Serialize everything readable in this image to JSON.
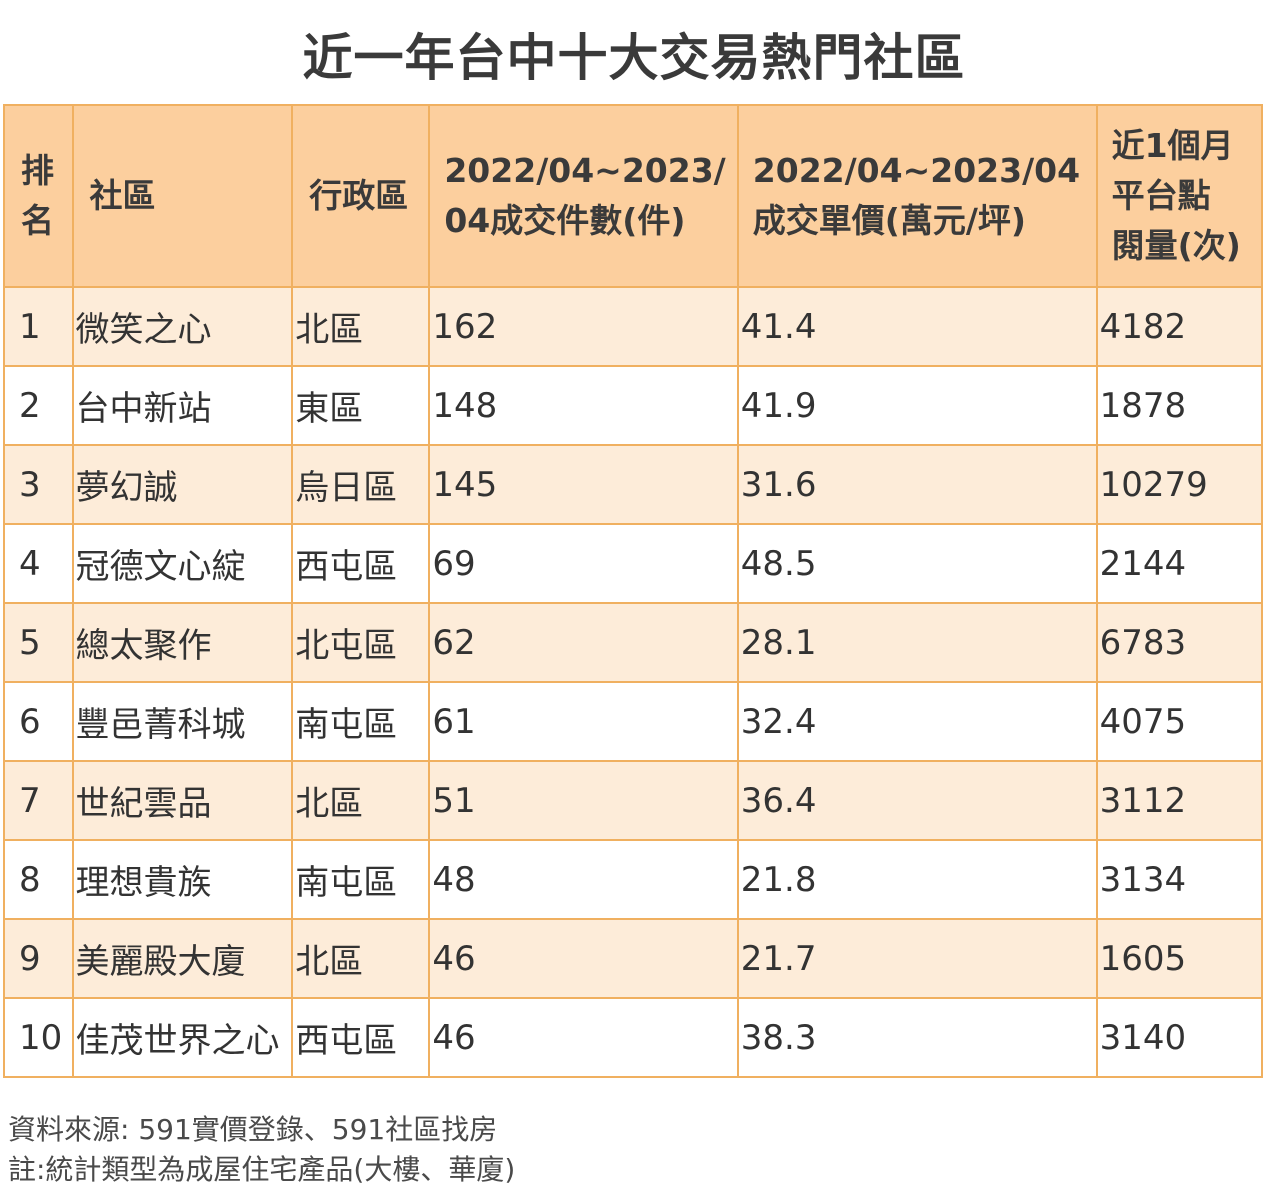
{
  "title": "近一年台中十大交易熱門社區",
  "table": {
    "headers": {
      "rank": [
        "排",
        "名"
      ],
      "community": "社區",
      "district": "行政區",
      "count": [
        "2022/04~2023/",
        "04成交件數(件)"
      ],
      "price": [
        "2022/04~2023/04",
        "成交單價(萬元/坪)"
      ],
      "views": [
        "近1個月",
        "平台點",
        "閱量(次)"
      ]
    },
    "rows": [
      {
        "rank": "1",
        "community": "微笑之心",
        "district": "北區",
        "count": "162",
        "price": "41.4",
        "views": "4182"
      },
      {
        "rank": "2",
        "community": "台中新站",
        "district": "東區",
        "count": "148",
        "price": "41.9",
        "views": "1878"
      },
      {
        "rank": "3",
        "community": "夢幻誠",
        "district": "烏日區",
        "count": "145",
        "price": "31.6",
        "views": "10279"
      },
      {
        "rank": "4",
        "community": "冠德文心綻",
        "district": "西屯區",
        "count": "69",
        "price": "48.5",
        "views": "2144"
      },
      {
        "rank": "5",
        "community": "總太聚作",
        "district": "北屯區",
        "count": "62",
        "price": "28.1",
        "views": "6783"
      },
      {
        "rank": "6",
        "community": "豐邑菁科城",
        "district": "南屯區",
        "count": "61",
        "price": "32.4",
        "views": "4075"
      },
      {
        "rank": "7",
        "community": "世紀雲品",
        "district": "北區",
        "count": "51",
        "price": "36.4",
        "views": "3112"
      },
      {
        "rank": "8",
        "community": "理想貴族",
        "district": "南屯區",
        "count": "48",
        "price": "21.8",
        "views": "3134"
      },
      {
        "rank": "9",
        "community": "美麗殿大廈",
        "district": "北區",
        "count": "46",
        "price": "21.7",
        "views": "1605"
      },
      {
        "rank": "10",
        "community": "佳茂世界之心",
        "district": "西屯區",
        "count": "46",
        "price": "38.3",
        "views": "3140"
      }
    ]
  },
  "footnotes": {
    "source": "資料來源: 591實價登錄、591社區找房",
    "note": "註:統計類型為成屋住宅產品(大樓、華廈)"
  },
  "colors": {
    "header_bg": "#fccf9e",
    "row_alt_bg": "#fdecd9",
    "border": "#f0b060"
  }
}
